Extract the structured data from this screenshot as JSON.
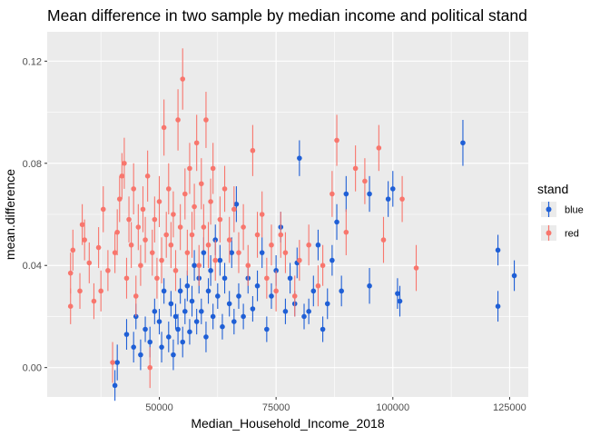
{
  "chart_data": {
    "type": "scatter",
    "title": "Mean difference in two sample by median income and political stand",
    "xlabel": "Median_Household_Income_2018",
    "ylabel": "mean.difference",
    "xlim": [
      26000,
      129000
    ],
    "ylim": [
      -0.0115,
      0.1315
    ],
    "x_ticks": [
      50000,
      75000,
      100000,
      125000
    ],
    "x_tick_labels": [
      "50000",
      "75000",
      "100000",
      "125000"
    ],
    "y_ticks": [
      0.0,
      0.04,
      0.08,
      0.12
    ],
    "y_tick_labels": [
      "0.00",
      "0.04",
      "0.08",
      "0.12"
    ],
    "grid": true,
    "legend": {
      "title": "stand",
      "position": "right",
      "entries": [
        {
          "label": "blue",
          "color": "#1f5fd6"
        },
        {
          "label": "red",
          "color": "#f8766d"
        }
      ]
    },
    "error_bars": true,
    "series": [
      {
        "name": "blue",
        "color": "#1f5fd6",
        "points": [
          [
            40500,
            -0.007,
            0.006
          ],
          [
            41000,
            0.002,
            0.007
          ],
          [
            43000,
            0.013,
            0.006
          ],
          [
            44500,
            0.008,
            0.006
          ],
          [
            45000,
            0.02,
            0.005
          ],
          [
            46000,
            0.005,
            0.006
          ],
          [
            47000,
            0.015,
            0.005
          ],
          [
            48000,
            0.01,
            0.006
          ],
          [
            49000,
            0.022,
            0.005
          ],
          [
            50000,
            0.018,
            0.005
          ],
          [
            50500,
            0.008,
            0.006
          ],
          [
            51000,
            0.03,
            0.005
          ],
          [
            52000,
            0.012,
            0.006
          ],
          [
            52500,
            0.025,
            0.005
          ],
          [
            53000,
            0.005,
            0.006
          ],
          [
            53500,
            0.02,
            0.005
          ],
          [
            54000,
            0.015,
            0.006
          ],
          [
            54500,
            0.03,
            0.005
          ],
          [
            55000,
            0.01,
            0.006
          ],
          [
            55500,
            0.022,
            0.005
          ],
          [
            56000,
            0.032,
            0.006
          ],
          [
            56500,
            0.014,
            0.005
          ],
          [
            57000,
            0.026,
            0.006
          ],
          [
            57500,
            0.04,
            0.006
          ],
          [
            58000,
            0.018,
            0.005
          ],
          [
            58500,
            0.035,
            0.006
          ],
          [
            59000,
            0.022,
            0.005
          ],
          [
            59500,
            0.045,
            0.006
          ],
          [
            60000,
            0.012,
            0.006
          ],
          [
            60500,
            0.03,
            0.005
          ],
          [
            61000,
            0.038,
            0.006
          ],
          [
            61500,
            0.02,
            0.005
          ],
          [
            62000,
            0.05,
            0.006
          ],
          [
            62500,
            0.028,
            0.005
          ],
          [
            63000,
            0.042,
            0.006
          ],
          [
            63500,
            0.016,
            0.005
          ],
          [
            64000,
            0.035,
            0.006
          ],
          [
            65000,
            0.025,
            0.005
          ],
          [
            65500,
            0.045,
            0.006
          ],
          [
            66000,
            0.018,
            0.005
          ],
          [
            66500,
            0.064,
            0.007
          ],
          [
            67000,
            0.028,
            0.005
          ],
          [
            68000,
            0.02,
            0.005
          ],
          [
            69000,
            0.035,
            0.006
          ],
          [
            70000,
            0.023,
            0.005
          ],
          [
            71000,
            0.032,
            0.006
          ],
          [
            72000,
            0.045,
            0.006
          ],
          [
            73000,
            0.015,
            0.005
          ],
          [
            74000,
            0.028,
            0.005
          ],
          [
            75000,
            0.038,
            0.006
          ],
          [
            76000,
            0.055,
            0.006
          ],
          [
            77000,
            0.022,
            0.005
          ],
          [
            78000,
            0.035,
            0.006
          ],
          [
            79000,
            0.025,
            0.005
          ],
          [
            79500,
            0.041,
            0.006
          ],
          [
            80000,
            0.082,
            0.007
          ],
          [
            81000,
            0.02,
            0.005
          ],
          [
            82000,
            0.022,
            0.005
          ],
          [
            83000,
            0.03,
            0.006
          ],
          [
            84000,
            0.048,
            0.006
          ],
          [
            85000,
            0.015,
            0.005
          ],
          [
            86000,
            0.025,
            0.006
          ],
          [
            87000,
            0.042,
            0.006
          ],
          [
            88000,
            0.057,
            0.007
          ],
          [
            89000,
            0.03,
            0.006
          ],
          [
            90000,
            0.068,
            0.007
          ],
          [
            95000,
            0.032,
            0.007
          ],
          [
            95000,
            0.068,
            0.007
          ],
          [
            99000,
            0.066,
            0.007
          ],
          [
            100000,
            0.07,
            0.007
          ],
          [
            101000,
            0.029,
            0.006
          ],
          [
            101500,
            0.026,
            0.006
          ],
          [
            115000,
            0.088,
            0.009
          ],
          [
            122500,
            0.046,
            0.006
          ],
          [
            122500,
            0.024,
            0.006
          ],
          [
            126000,
            0.036,
            0.006
          ]
        ]
      },
      {
        "name": "red",
        "color": "#f8766d",
        "points": [
          [
            31000,
            0.024,
            0.007
          ],
          [
            31000,
            0.037,
            0.008
          ],
          [
            31500,
            0.046,
            0.008
          ],
          [
            33000,
            0.03,
            0.007
          ],
          [
            33500,
            0.056,
            0.008
          ],
          [
            34000,
            0.05,
            0.008
          ],
          [
            35000,
            0.041,
            0.008
          ],
          [
            36000,
            0.026,
            0.007
          ],
          [
            37000,
            0.047,
            0.008
          ],
          [
            37500,
            0.03,
            0.008
          ],
          [
            38000,
            0.062,
            0.009
          ],
          [
            39000,
            0.038,
            0.008
          ],
          [
            40000,
            0.002,
            0.008
          ],
          [
            40500,
            0.045,
            0.008
          ],
          [
            41000,
            0.053,
            0.009
          ],
          [
            41500,
            0.066,
            0.009
          ],
          [
            42000,
            0.075,
            0.009
          ],
          [
            42500,
            0.08,
            0.01
          ],
          [
            43000,
            0.035,
            0.008
          ],
          [
            43500,
            0.058,
            0.009
          ],
          [
            44000,
            0.048,
            0.009
          ],
          [
            44500,
            0.07,
            0.01
          ],
          [
            45000,
            0.028,
            0.008
          ],
          [
            45500,
            0.055,
            0.009
          ],
          [
            46000,
            0.04,
            0.008
          ],
          [
            46500,
            0.062,
            0.009
          ],
          [
            47000,
            0.05,
            0.009
          ],
          [
            47500,
            0.075,
            0.01
          ],
          [
            48000,
            0.0,
            0.008
          ],
          [
            48500,
            0.045,
            0.009
          ],
          [
            49000,
            0.058,
            0.009
          ],
          [
            49500,
            0.035,
            0.008
          ],
          [
            50000,
            0.065,
            0.01
          ],
          [
            50500,
            0.042,
            0.009
          ],
          [
            51000,
            0.094,
            0.011
          ],
          [
            51500,
            0.052,
            0.009
          ],
          [
            52000,
            0.07,
            0.01
          ],
          [
            52500,
            0.048,
            0.009
          ],
          [
            53000,
            0.06,
            0.009
          ],
          [
            53500,
            0.038,
            0.008
          ],
          [
            54000,
            0.097,
            0.012
          ],
          [
            54500,
            0.055,
            0.009
          ],
          [
            55000,
            0.113,
            0.012
          ],
          [
            55500,
            0.068,
            0.01
          ],
          [
            56000,
            0.045,
            0.009
          ],
          [
            56500,
            0.078,
            0.01
          ],
          [
            57000,
            0.052,
            0.009
          ],
          [
            57500,
            0.063,
            0.009
          ],
          [
            58000,
            0.088,
            0.011
          ],
          [
            58500,
            0.04,
            0.008
          ],
          [
            59000,
            0.072,
            0.01
          ],
          [
            59500,
            0.055,
            0.009
          ],
          [
            60000,
            0.097,
            0.011
          ],
          [
            60500,
            0.048,
            0.009
          ],
          [
            61000,
            0.065,
            0.009
          ],
          [
            61500,
            0.078,
            0.01
          ],
          [
            62000,
            0.042,
            0.008
          ],
          [
            63000,
            0.058,
            0.009
          ],
          [
            64000,
            0.07,
            0.009
          ],
          [
            65000,
            0.05,
            0.009
          ],
          [
            66000,
            0.062,
            0.009
          ],
          [
            67000,
            0.045,
            0.008
          ],
          [
            68000,
            0.055,
            0.009
          ],
          [
            69000,
            0.04,
            0.008
          ],
          [
            70000,
            0.085,
            0.01
          ],
          [
            71000,
            0.052,
            0.009
          ],
          [
            72000,
            0.06,
            0.009
          ],
          [
            73000,
            0.035,
            0.008
          ],
          [
            74000,
            0.048,
            0.008
          ],
          [
            75000,
            0.03,
            0.008
          ],
          [
            76000,
            0.052,
            0.009
          ],
          [
            77000,
            0.045,
            0.008
          ],
          [
            79000,
            0.028,
            0.008
          ],
          [
            80000,
            0.042,
            0.008
          ],
          [
            82000,
            0.048,
            0.008
          ],
          [
            84000,
            0.032,
            0.008
          ],
          [
            85000,
            0.04,
            0.008
          ],
          [
            87000,
            0.068,
            0.009
          ],
          [
            88000,
            0.089,
            0.01
          ],
          [
            90000,
            0.053,
            0.009
          ],
          [
            92000,
            0.078,
            0.009
          ],
          [
            94000,
            0.073,
            0.009
          ],
          [
            97000,
            0.086,
            0.009
          ],
          [
            98000,
            0.05,
            0.009
          ],
          [
            102000,
            0.066,
            0.009
          ],
          [
            105000,
            0.039,
            0.009
          ]
        ]
      }
    ]
  }
}
